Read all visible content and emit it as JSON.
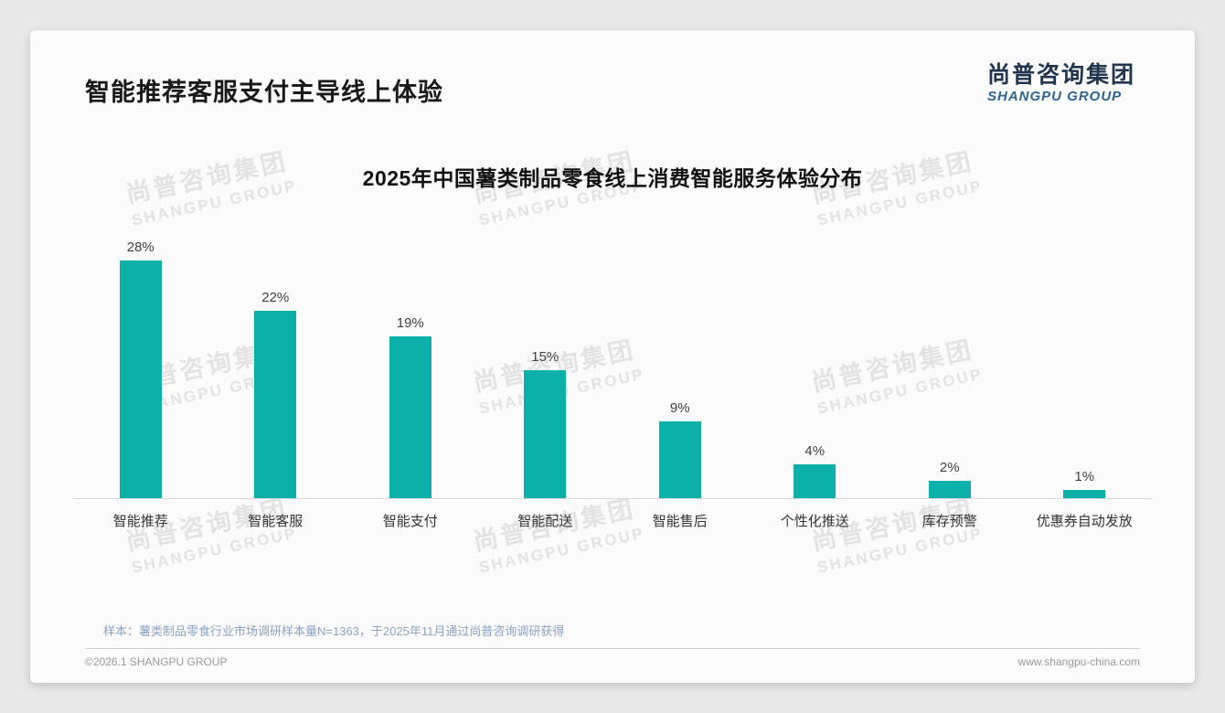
{
  "page": {
    "title": "智能推荐客服支付主导线上体验",
    "logo": {
      "cn": "尚普咨询集团",
      "en": "SHANGPU GROUP"
    },
    "watermark": {
      "cn": "尚普咨询集团",
      "en": "SHANGPU GROUP"
    },
    "note": "样本：薯类制品零食行业市场调研样本量N=1363，于2025年11月通过尚普咨询调研获得",
    "footer": {
      "left": "©2026.1 SHANGPU GROUP",
      "right": "www.shangpu-china.com"
    }
  },
  "colors": {
    "bar": "#0bb0a8",
    "logo_cn": "#22354c",
    "logo_en": "#31648e",
    "note": "#8ba2c2",
    "axis": "#d9d9d9"
  },
  "chart_data": {
    "type": "bar",
    "title": "2025年中国薯类制品零食线上消费智能服务体验分布",
    "categories": [
      "智能推荐",
      "智能客服",
      "智能支付",
      "智能配送",
      "智能售后",
      "个性化推送",
      "库存预警",
      "优惠券自动发放"
    ],
    "values": [
      28,
      22,
      19,
      15,
      9,
      4,
      2,
      1
    ],
    "labels": [
      "28%",
      "22%",
      "19%",
      "15%",
      "9%",
      "4%",
      "2%",
      "1%"
    ],
    "unit": "%",
    "xlabel": "",
    "ylabel": "",
    "ylim": [
      0,
      30
    ],
    "grid": false,
    "legend": null,
    "bar_color": "#0bb0a8"
  }
}
